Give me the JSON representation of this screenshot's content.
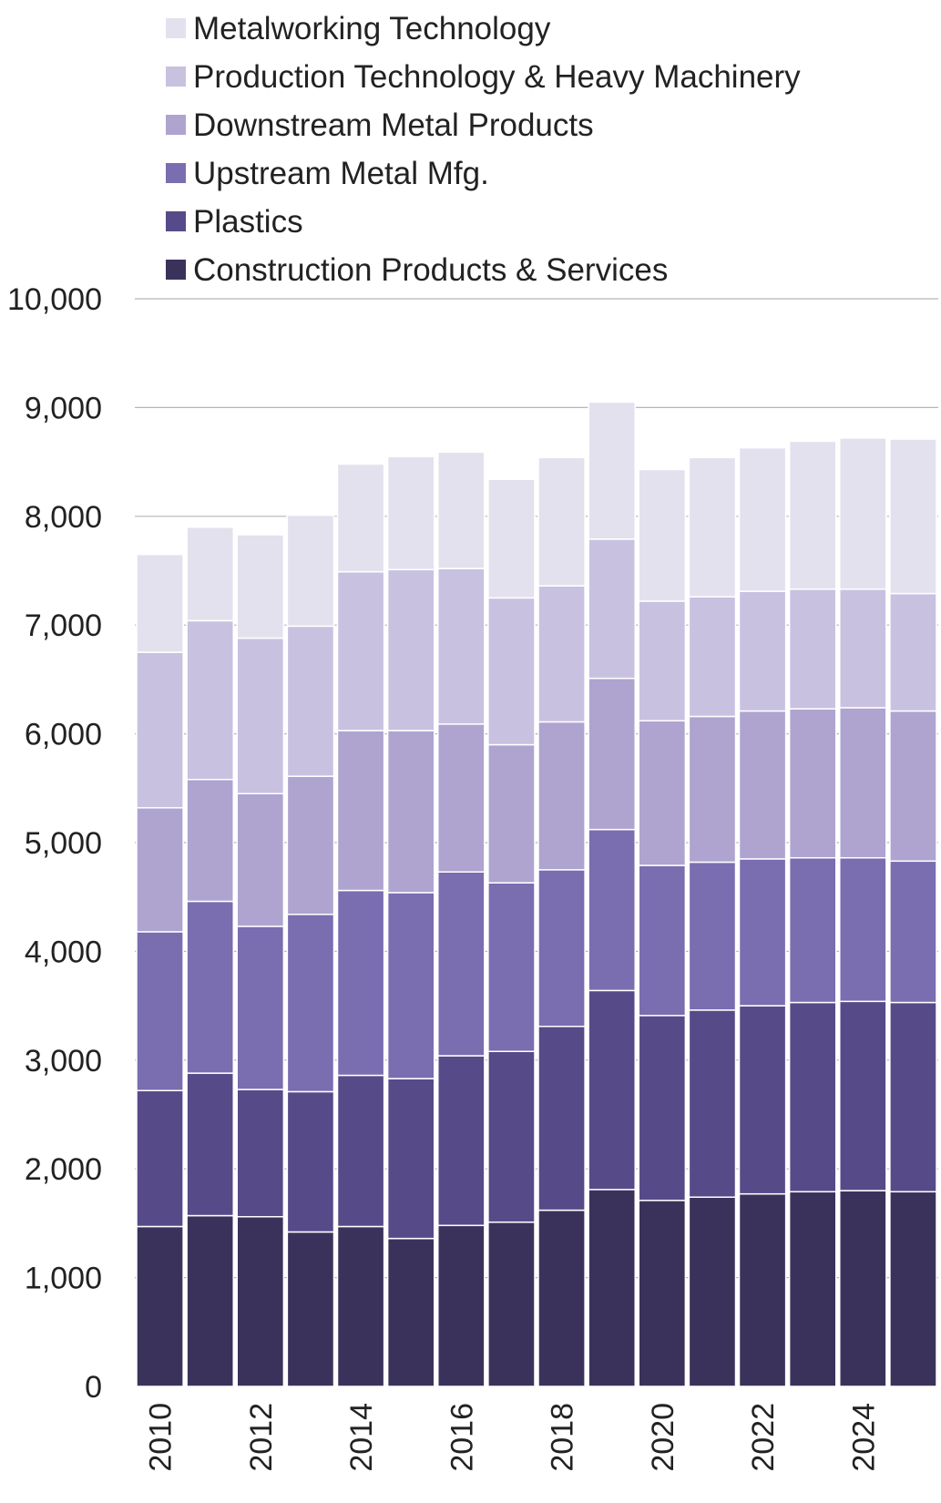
{
  "chart_data": {
    "type": "bar",
    "stacked": true,
    "title": "",
    "xlabel": "",
    "ylabel": "",
    "ylim": [
      0,
      10000
    ],
    "yticks": [
      0,
      1000,
      2000,
      3000,
      4000,
      5000,
      6000,
      7000,
      8000,
      9000,
      10000
    ],
    "ytick_labels": [
      "0",
      "1,000",
      "2,000",
      "3,000",
      "4,000",
      "5,000",
      "6,000",
      "7,000",
      "8,000",
      "9,000",
      "10,000"
    ],
    "categories": [
      "2010",
      "2011",
      "2012",
      "2013",
      "2014",
      "2015",
      "2016",
      "2017",
      "2018",
      "2019",
      "2020",
      "2021",
      "2022",
      "2023",
      "2024",
      "2025"
    ],
    "xtick_labels": [
      "2010",
      "",
      "2012",
      "",
      "2014",
      "",
      "2016",
      "",
      "2018",
      "",
      "2020",
      "",
      "2022",
      "",
      "2024",
      ""
    ],
    "legend_position": "top-left",
    "grid": true,
    "series": [
      {
        "name": "Construction Products & Services",
        "color": "#3b325c",
        "values": [
          1470,
          1570,
          1560,
          1420,
          1470,
          1360,
          1480,
          1510,
          1620,
          1810,
          1710,
          1740,
          1770,
          1790,
          1800,
          1790
        ]
      },
      {
        "name": "Plastics",
        "color": "#574a89",
        "values": [
          1250,
          1310,
          1170,
          1290,
          1390,
          1470,
          1560,
          1570,
          1690,
          1830,
          1700,
          1720,
          1730,
          1740,
          1740,
          1740
        ]
      },
      {
        "name": "Upstream Metal Mfg.",
        "color": "#7a6db0",
        "values": [
          1460,
          1580,
          1500,
          1630,
          1700,
          1710,
          1690,
          1550,
          1440,
          1480,
          1380,
          1360,
          1350,
          1330,
          1320,
          1300
        ]
      },
      {
        "name": "Downstream Metal Products",
        "color": "#aea4cf",
        "values": [
          1140,
          1120,
          1220,
          1270,
          1470,
          1490,
          1360,
          1270,
          1360,
          1390,
          1330,
          1340,
          1360,
          1370,
          1380,
          1380
        ]
      },
      {
        "name": "Production Technology & Heavy Machinery",
        "color": "#c8c1e0",
        "values": [
          1430,
          1460,
          1430,
          1380,
          1460,
          1480,
          1430,
          1350,
          1250,
          1280,
          1100,
          1100,
          1100,
          1100,
          1090,
          1080
        ]
      },
      {
        "name": "Metalworking Technology",
        "color": "#e4e1ee",
        "values": [
          900,
          860,
          950,
          1020,
          990,
          1040,
          1070,
          1090,
          1180,
          1260,
          1210,
          1280,
          1320,
          1360,
          1390,
          1420
        ]
      }
    ]
  }
}
